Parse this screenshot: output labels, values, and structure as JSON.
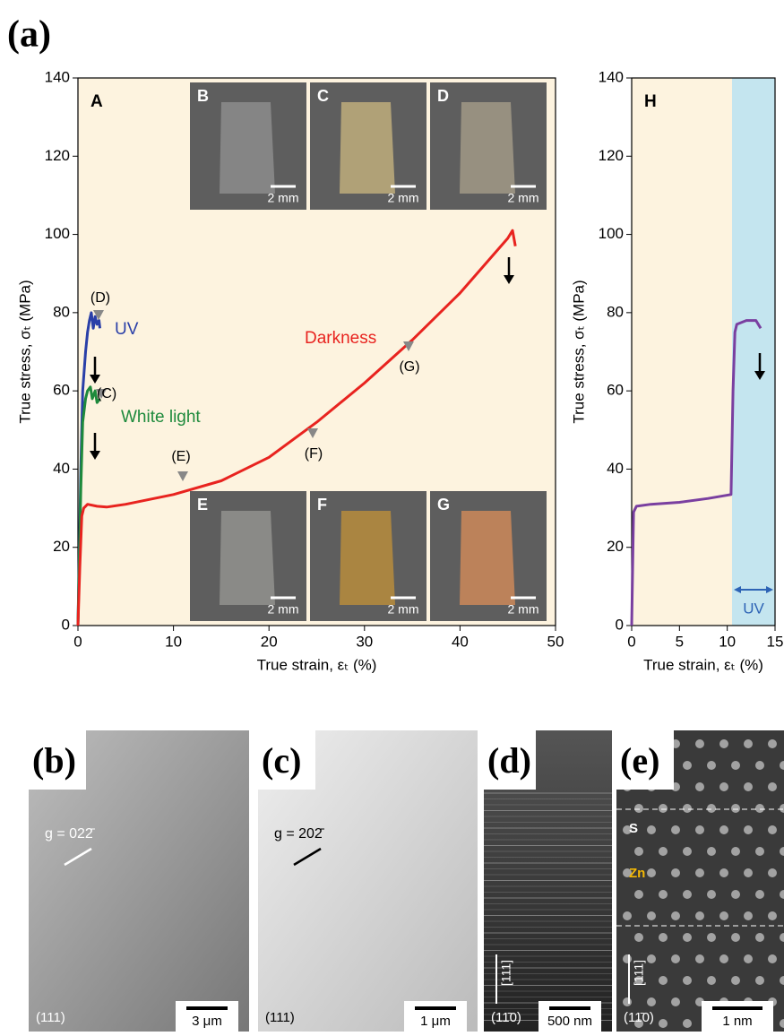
{
  "figure_label": "(a)",
  "chart_data": [
    {
      "type": "line",
      "panel_label": "A",
      "xlabel": "True strain, εₜ (%)",
      "ylabel": "True stress, σₜ (MPa)",
      "xlim": [
        0,
        50
      ],
      "xticks": [
        0,
        10,
        20,
        30,
        40,
        50
      ],
      "ylim": [
        0,
        140
      ],
      "yticks": [
        0,
        20,
        40,
        60,
        80,
        100,
        120,
        140
      ],
      "series": [
        {
          "name": "UV",
          "color": "#2a3fa8",
          "x": [
            0,
            0.3,
            0.5,
            0.8,
            1,
            1.2,
            1.4,
            1.6,
            1.8,
            2,
            2.2,
            2.3
          ],
          "values": [
            0,
            40,
            60,
            70,
            75,
            78,
            80,
            76,
            79,
            77,
            78,
            76
          ]
        },
        {
          "name": "White light",
          "color": "#1e8a3c",
          "x": [
            0,
            0.3,
            0.5,
            0.8,
            1,
            1.3,
            1.5,
            1.8,
            2,
            2.3
          ],
          "values": [
            0,
            35,
            52,
            58,
            60,
            61,
            58,
            60,
            57,
            58
          ]
        },
        {
          "name": "Darkness",
          "color": "#e8231f",
          "x": [
            0,
            0.2,
            0.4,
            0.6,
            1,
            2,
            3,
            5,
            10,
            15,
            20,
            25,
            30,
            35,
            40,
            45,
            45.5,
            45.8
          ],
          "values": [
            0,
            15,
            28,
            30,
            31,
            30.5,
            30.3,
            31,
            33.5,
            37,
            43,
            52,
            62,
            73,
            85,
            99,
            101,
            97
          ]
        }
      ],
      "annotations": [
        "(D)",
        "(C)",
        "(E)",
        "(F)",
        "(G)"
      ]
    },
    {
      "type": "line",
      "panel_label": "H",
      "xlabel": "True strain, εₜ (%)",
      "ylabel": "True stress, σₜ (MPa)",
      "xlim": [
        0,
        15
      ],
      "xticks": [
        0,
        5,
        10,
        15
      ],
      "ylim": [
        0,
        140
      ],
      "yticks": [
        0,
        20,
        40,
        60,
        80,
        100,
        120,
        140
      ],
      "uv_region": [
        10.5,
        15
      ],
      "uv_label": "UV",
      "series": [
        {
          "color": "#7a3fa0",
          "x": [
            0,
            0.2,
            0.5,
            2,
            5,
            8,
            10.4,
            10.6,
            10.8,
            11,
            12,
            13,
            13.5
          ],
          "values": [
            0,
            29,
            30.5,
            31,
            31.5,
            32.5,
            33.5,
            60,
            75,
            77,
            78,
            78,
            76
          ]
        }
      ]
    }
  ],
  "photos": [
    {
      "label": "B",
      "scale": "2 mm"
    },
    {
      "label": "C",
      "scale": "2 mm"
    },
    {
      "label": "D",
      "scale": "2 mm"
    },
    {
      "label": "E",
      "scale": "2 mm"
    },
    {
      "label": "F",
      "scale": "2 mm"
    },
    {
      "label": "G",
      "scale": "2 mm"
    }
  ],
  "micrographs": [
    {
      "label": "(b)",
      "vector": "g = 022̄",
      "plane": "(111)",
      "scale": "3 μm"
    },
    {
      "label": "(c)",
      "vector": "g = 202̄",
      "plane": "(111)",
      "scale": "1 μm"
    },
    {
      "label": "(d)",
      "direction": "[111]",
      "plane": "(11̄0)",
      "scale": "500 nm"
    },
    {
      "label": "(e)",
      "direction": "[111]",
      "plane": "(11̄0)",
      "scale": "1 nm",
      "atoms": [
        "S",
        "Zn"
      ]
    }
  ]
}
